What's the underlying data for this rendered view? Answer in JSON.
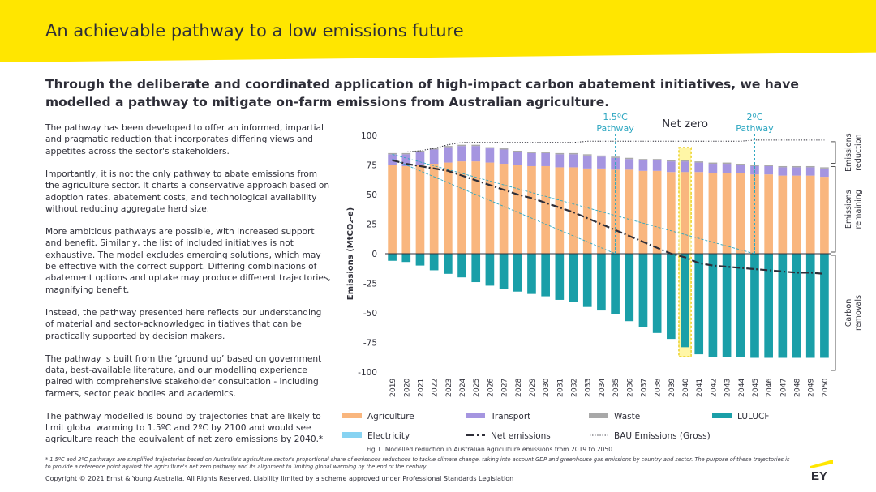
{
  "header": {
    "title": "An achievable pathway to a low emissions future",
    "subtitle": "Through the deliberate and coordinated application of high-impact carbon abatement initiatives, we have modelled a pathway to mitigate on-farm emissions from Australian agriculture."
  },
  "body": {
    "paragraphs": [
      "The pathway has been developed to offer an informed, impartial and pragmatic reduction that incorporates differing views and appetites across the sector's stakeholders.",
      "Importantly, it is not the only pathway to abate emissions from the agriculture sector. It charts a conservative approach based on adoption rates, abatement costs, and technological availability without reducing aggregate herd size.",
      "More ambitious pathways are possible, with increased support and benefit. Similarly, the list of included initiatives is not exhaustive. The model excludes emerging solutions, which may be effective with the correct support. Differing combinations of abatement options and uptake may produce different trajectories, magnifying benefit.",
      "Instead, the pathway presented here reflects our understanding of material and sector-acknowledged initiatives that can be practically supported by decision makers.",
      "The pathway is built from the ‘ground up’ based on government data, best-available literature, and our modelling experience paired with comprehensive stakeholder consultation - including farmers, sector peak bodies and academics.",
      "The pathway modelled is bound by trajectories that are likely to limit global warming to 1.5ºC and 2ºC by 2100 and would see agriculture reach the equivalent of net zero emissions by 2040.*"
    ]
  },
  "footer": {
    "footnote": "* 1.5ºC and 2ºC pathways are simplified trajectories based on Australia's agriculture sector's proportional share of emissions reductions to tackle climate change, taking into account GDP and greenhouse gas emissions by country and sector. The purpose of these trajectories is to provide a reference point against the agriculture's net zero pathway and its alignment to limiting global warming by the end of the century.",
    "copyright": "Copyright © 2021 Ernst & Young Australia. All Rights Reserved. Liability limited by a scheme approved under Professional Standards Legislation",
    "logo_text": "EY"
  },
  "chart_data": {
    "type": "bar",
    "caption": "Fig 1. Modelled reduction in Australian agriculture emissions from 2019 to 2050",
    "ylabel": "Emissions (MtCO₂-e)",
    "ylim": [
      -100,
      100
    ],
    "yticks": [
      100,
      75,
      50,
      25,
      0,
      -25,
      -50,
      -75,
      -100
    ],
    "grid": false,
    "legend_position": "bottom",
    "categories": [
      "2019",
      "2020",
      "2021",
      "2022",
      "2023",
      "2024",
      "2025",
      "2026",
      "2027",
      "2028",
      "2029",
      "2030",
      "2031",
      "2032",
      "2033",
      "2034",
      "2035",
      "2036",
      "2037",
      "2038",
      "2039",
      "2040",
      "2041",
      "2042",
      "2043",
      "2044",
      "2045",
      "2046",
      "2047",
      "2048",
      "2049",
      "2050"
    ],
    "series": [
      {
        "name": "Agriculture",
        "color": "#f9b67e",
        "values": [
          75,
          74,
          75,
          76,
          77,
          78,
          78,
          77,
          76,
          75,
          74,
          74,
          73,
          73,
          72,
          72,
          71,
          71,
          70,
          70,
          69,
          69,
          69,
          68,
          68,
          68,
          67,
          67,
          66,
          66,
          66,
          65
        ]
      },
      {
        "name": "Transport",
        "color": "#a595e0",
        "values": [
          9,
          10,
          11,
          12,
          13,
          13,
          13,
          12,
          12,
          11,
          11,
          11,
          11,
          11,
          11,
          10,
          10,
          9,
          9,
          9,
          9,
          9,
          8,
          8,
          8,
          7,
          7,
          7,
          7,
          7,
          7,
          7
        ]
      },
      {
        "name": "Waste",
        "color": "#a8a8a8",
        "values": [
          1,
          1,
          1,
          1,
          1,
          1,
          1,
          1,
          1,
          1,
          1,
          1,
          1,
          1,
          1,
          1,
          1,
          1,
          1,
          1,
          1,
          1,
          1,
          1,
          1,
          1,
          1,
          1,
          1,
          1,
          1,
          1
        ]
      },
      {
        "name": "Electricity",
        "color": "#87d3f2",
        "values": [
          0,
          0,
          0,
          0,
          0,
          0,
          0,
          0,
          0,
          0,
          0,
          0,
          0,
          0,
          0,
          0,
          0,
          0,
          0,
          0,
          0,
          0,
          0,
          0,
          0,
          0,
          0,
          0,
          0,
          0,
          0,
          0
        ]
      },
      {
        "name": "LULUCF",
        "color": "#1a9fa8",
        "values": [
          -6,
          -7,
          -10,
          -14,
          -17,
          -20,
          -24,
          -27,
          -30,
          -32,
          -34,
          -36,
          -39,
          -41,
          -45,
          -48,
          -51,
          -57,
          -62,
          -67,
          -72,
          -79,
          -85,
          -87,
          -87,
          -87,
          -88,
          -88,
          -88,
          -88,
          -88,
          -88
        ]
      }
    ],
    "lines": [
      {
        "name": "Net emissions",
        "style": "dash-dot",
        "color": "#2e2e38",
        "values": [
          79,
          76,
          74,
          72,
          70,
          66,
          62,
          58,
          54,
          50,
          47,
          43,
          39,
          35,
          30,
          25,
          20,
          15,
          10,
          5,
          0,
          -3,
          -8,
          -10,
          -11,
          -12,
          -13,
          -14,
          -15,
          -16,
          -16,
          -17
        ]
      },
      {
        "name": "BAU Emissions (Gross)",
        "style": "dotted",
        "color": "#2e2e38",
        "values": [
          86,
          86,
          87,
          89,
          92,
          94,
          94,
          94,
          94,
          94,
          94,
          94,
          94,
          94,
          95,
          95,
          95,
          95,
          95,
          95,
          95,
          95,
          95,
          95,
          95,
          95,
          96,
          96,
          96,
          96,
          96,
          96
        ]
      }
    ],
    "pathways": [
      {
        "name": "1.5ºC Pathway",
        "label_line1": "1.5ºC",
        "label_line2": "Pathway",
        "color": "#2ba6c0",
        "start_year": "2019",
        "start_value": 80,
        "end_year": "2035",
        "end_value": 0
      },
      {
        "name": "2ºC Pathway",
        "label_line1": "2ºC",
        "label_line2": "Pathway",
        "color": "#2ba6c0",
        "start_year": "2019",
        "start_value": 84,
        "end_year": "2045",
        "end_value": 0
      }
    ],
    "net_zero": {
      "label": "Net zero",
      "year": "2040",
      "color": "#ffe600"
    },
    "side_labels": [
      {
        "name": "emissions-reduction",
        "line1": "Emissions",
        "line2": "reduction",
        "from": 96,
        "to": 75
      },
      {
        "name": "emissions-remaining",
        "line1": "Emissions",
        "line2": "remaining",
        "from": 75,
        "to": 0
      },
      {
        "name": "carbon-removals",
        "line1": "Carbon",
        "line2": "removals",
        "from": 0,
        "to": -100
      }
    ],
    "legend": [
      {
        "name": "Agriculture",
        "kind": "box",
        "color": "#f9b67e"
      },
      {
        "name": "Transport",
        "kind": "box",
        "color": "#a595e0"
      },
      {
        "name": "Waste",
        "kind": "box",
        "color": "#a8a8a8"
      },
      {
        "name": "LULUCF",
        "kind": "box",
        "color": "#1a9fa8"
      },
      {
        "name": "Electricity",
        "kind": "box",
        "color": "#87d3f2"
      },
      {
        "name": "Net emissions",
        "kind": "dashdot",
        "color": "#2e2e38"
      },
      {
        "name": "BAU Emissions (Gross)",
        "kind": "dotted",
        "color": "#2e2e38"
      }
    ]
  }
}
